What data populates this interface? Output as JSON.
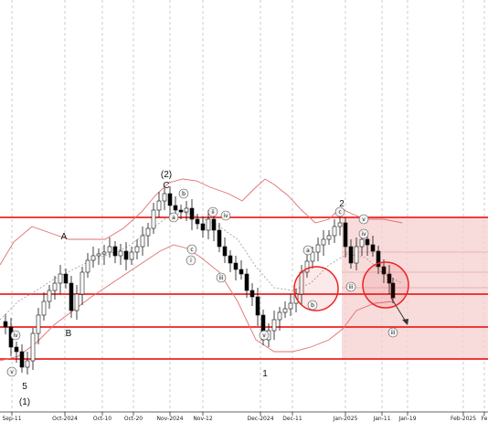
{
  "chart_data": {
    "type": "candlestick",
    "x_ticks": [
      "Sep-11",
      "Oct-2024",
      "Oct-10",
      "Oct-20",
      "Nov-2024",
      "Nov-12",
      "Dec-2024",
      "Dec-11",
      "Jan-2025",
      "Jan-11",
      "Jan-19",
      "Feb-2025",
      "Fe"
    ],
    "grid": "vertical dashed at month boundaries",
    "bollinger_bands": {
      "upper_color": "#e07070",
      "middle_color": "#999999",
      "lower_color": "#e07070"
    },
    "resistance_support_lines_color": "#ee2222",
    "forecast_zone_color": "#f6d0d0",
    "highlight_circles": 2,
    "wave_labels": [
      {
        "text": "(2)"
      },
      {
        "text": "C"
      },
      {
        "text": "A"
      },
      {
        "text": "B"
      },
      {
        "text": "2"
      },
      {
        "text": "1"
      },
      {
        "text": "5"
      },
      {
        "text": "(1)"
      }
    ],
    "subwave_labels": [
      "b",
      "a",
      "c",
      "ii",
      "i",
      "iii",
      "iv",
      "v",
      "a",
      "b",
      "c",
      "iii",
      "v",
      "iv",
      "iii",
      "iv",
      "v"
    ]
  },
  "colors": {
    "up": "#ffffff",
    "down": "#000000",
    "candle_edge": "#111111",
    "forecast_arrow": "#333333"
  }
}
